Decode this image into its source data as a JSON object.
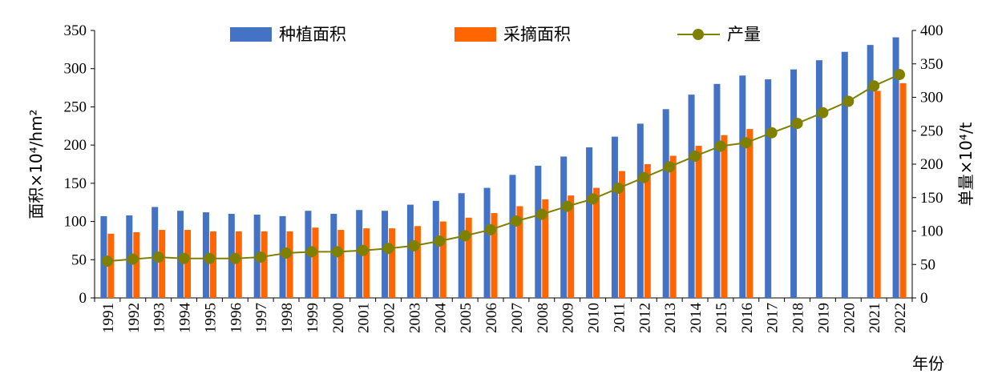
{
  "chart_data": {
    "type": "bar",
    "categories": [
      "1991",
      "1992",
      "1993",
      "1994",
      "1995",
      "1996",
      "1997",
      "1998",
      "1999",
      "2000",
      "2001",
      "2002",
      "2003",
      "2004",
      "2005",
      "2006",
      "2007",
      "2008",
      "2009",
      "2010",
      "2011",
      "2012",
      "2013",
      "2014",
      "2015",
      "2016",
      "2017",
      "2018",
      "2019",
      "2020",
      "2021",
      "2022"
    ],
    "series": [
      {
        "name": "种植面积",
        "axis": "left",
        "kind": "bar",
        "color": "#4472C4",
        "values": [
          107,
          108,
          119,
          114,
          112,
          110,
          109,
          107,
          114,
          110,
          115,
          114,
          122,
          127,
          137,
          144,
          161,
          173,
          185,
          197,
          211,
          228,
          247,
          266,
          280,
          291,
          286,
          299,
          311,
          322,
          331,
          341
        ]
      },
      {
        "name": "采摘面积",
        "axis": "left",
        "kind": "bar",
        "color": "#FF6600",
        "values": [
          84,
          86,
          89,
          89,
          87,
          87,
          87,
          87,
          92,
          89,
          91,
          91,
          94,
          100,
          105,
          111,
          120,
          129,
          134,
          144,
          166,
          175,
          186,
          199,
          213,
          221,
          0,
          0,
          0,
          0,
          271,
          281
        ]
      },
      {
        "name": "产量",
        "axis": "right",
        "kind": "line",
        "color": "#808000",
        "values": [
          55,
          58,
          61,
          59,
          59,
          59,
          61,
          67,
          69,
          69,
          71,
          74,
          78,
          85,
          93,
          102,
          115,
          125,
          137,
          148,
          164,
          180,
          196,
          212,
          227,
          232,
          247,
          261,
          277,
          294,
          317,
          334
        ]
      }
    ],
    "y_left": {
      "label": "面积×10⁴/hm²",
      "ylim": [
        0,
        350
      ],
      "ticks": [
        0,
        50,
        100,
        150,
        200,
        250,
        300,
        350
      ]
    },
    "y_right": {
      "label": "单量×10⁴/t",
      "ylim": [
        0,
        400
      ],
      "ticks": [
        0,
        50,
        100,
        150,
        200,
        250,
        300,
        350,
        400
      ]
    },
    "xlabel": "年份",
    "legend_position": "top",
    "grid": false
  }
}
